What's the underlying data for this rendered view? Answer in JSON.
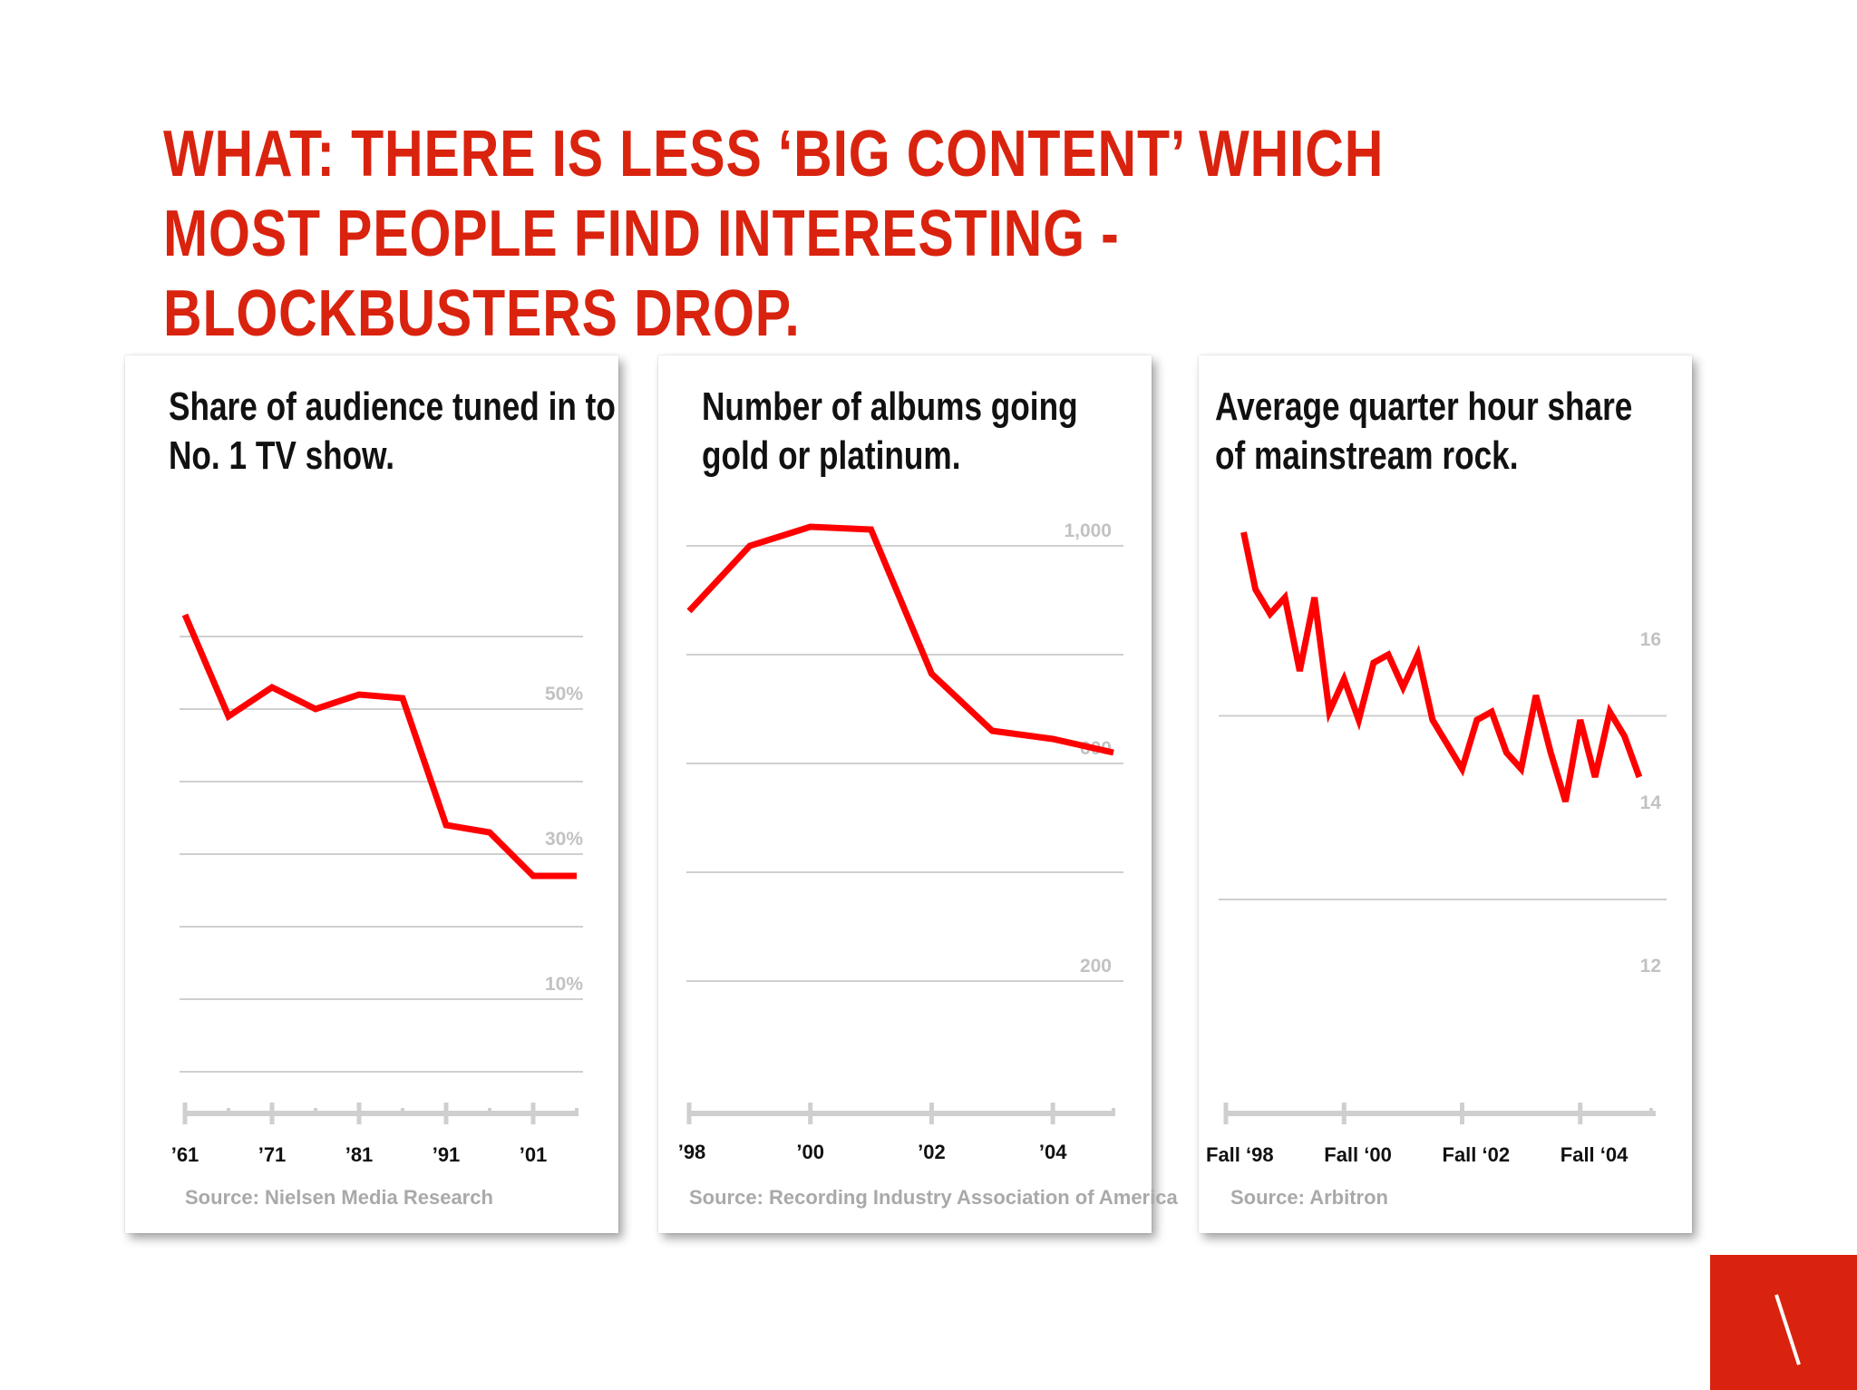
{
  "slide": {
    "headline": "WHAT: THERE IS LESS ‘BIG CONTENT’ WHICH MOST PEOPLE FIND INTERESTING - BLOCKBUSTERS DROP.",
    "accent_color": "#d9230f",
    "corner_logo_icon": "backslash-logo-icon"
  },
  "chart_data": [
    {
      "type": "line",
      "title": "Share of audience tuned in to No. 1 TV show.",
      "source": "Source: Nielsen Media Research",
      "x_min": 1961,
      "x_max": 2006,
      "ylim": [
        -10,
        80
      ],
      "gridlines": [
        0,
        10,
        20,
        30,
        40,
        50,
        60
      ],
      "ytick_labels": [
        {
          "value": 10,
          "label": "10%"
        },
        {
          "value": 30,
          "label": "30%"
        },
        {
          "value": 50,
          "label": "50%"
        }
      ],
      "xtick_labels": [
        {
          "value": 1961,
          "label": "’61"
        },
        {
          "value": 1971,
          "label": "’71"
        },
        {
          "value": 1981,
          "label": "’81"
        },
        {
          "value": 1991,
          "label": "’91"
        },
        {
          "value": 2001,
          "label": "’01"
        }
      ],
      "x_minor_ticks": [
        1961,
        1966,
        1971,
        1976,
        1981,
        1986,
        1991,
        1996,
        2001,
        2006
      ],
      "line_color": "#ff0000",
      "series": [
        {
          "x": [
            1961,
            1966,
            1971,
            1976,
            1981,
            1986,
            1991,
            1996,
            2001,
            2006
          ],
          "values": [
            63,
            49,
            53,
            50,
            52,
            51.5,
            34,
            33,
            27,
            27
          ]
        }
      ]
    },
    {
      "type": "line",
      "title": "Number of albums going gold or platinum.",
      "source": "Source: Recording Industry Association of America",
      "x_min": 1998,
      "x_max": 2005,
      "ylim": [
        -100,
        1100
      ],
      "gridlines": [
        200,
        400,
        600,
        800,
        1000
      ],
      "ytick_labels": [
        {
          "value": 200,
          "label": "200"
        },
        {
          "value": 600,
          "label": "600"
        },
        {
          "value": 1000,
          "label": "1,000"
        }
      ],
      "xtick_labels": [
        {
          "value": 1998,
          "label": "’98"
        },
        {
          "value": 2000,
          "label": "’00"
        },
        {
          "value": 2002,
          "label": "’02"
        },
        {
          "value": 2004,
          "label": "’04"
        }
      ],
      "x_minor_ticks": [
        1998,
        2000,
        2002,
        2004,
        2005
      ],
      "line_color": "#ff0000",
      "series": [
        {
          "x": [
            1998,
            1999,
            2000,
            2001,
            2002,
            2003,
            2004,
            2005
          ],
          "values": [
            880,
            1000,
            1035,
            1030,
            765,
            660,
            645,
            620
          ]
        }
      ]
    },
    {
      "type": "line",
      "title": "Average quarter hour share of mainstream rock.",
      "source": "Source: Arbitron",
      "x_min": 1998,
      "x_max": 2005.8,
      "ylim": [
        10,
        18
      ],
      "gridlines": [
        13,
        15.25
      ],
      "ytick_labels": [
        {
          "value": 12,
          "label": "12"
        },
        {
          "value": 14,
          "label": "14"
        },
        {
          "value": 16,
          "label": "16"
        }
      ],
      "xtick_labels": [
        {
          "value": 1998,
          "label": "Fall ‘98"
        },
        {
          "value": 2000,
          "label": "Fall ‘00"
        },
        {
          "value": 2002,
          "label": "Fall ‘02"
        },
        {
          "value": 2004,
          "label": "Fall ‘04"
        }
      ],
      "x_minor_ticks": [
        1998,
        2000,
        2002,
        2004,
        2005.2
      ],
      "line_color": "#ff0000",
      "series": [
        {
          "x": [
            1998.3,
            1998.5,
            1998.75,
            1999.0,
            1999.25,
            1999.5,
            1999.75,
            2000.0,
            2000.25,
            2000.5,
            2000.75,
            2001.0,
            2001.25,
            2001.5,
            2001.75,
            2002.0,
            2002.25,
            2002.5,
            2002.75,
            2003.0,
            2003.25,
            2003.5,
            2003.75,
            2004.0,
            2004.25,
            2004.5,
            2004.75,
            2005.0
          ],
          "values": [
            17.5,
            16.8,
            16.5,
            16.7,
            15.8,
            16.7,
            15.3,
            15.7,
            15.2,
            15.9,
            16.0,
            15.6,
            16.0,
            15.2,
            14.9,
            14.6,
            15.2,
            15.3,
            14.8,
            14.6,
            15.5,
            14.8,
            14.2,
            15.2,
            14.5,
            15.3,
            15.0,
            14.5
          ]
        }
      ]
    }
  ]
}
